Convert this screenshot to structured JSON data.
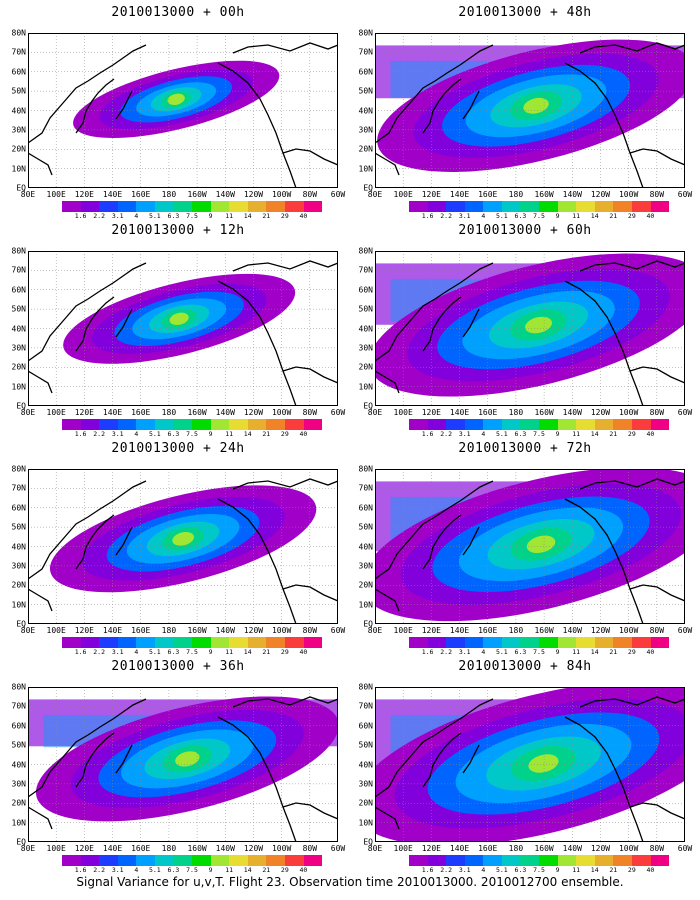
{
  "panels": [
    {
      "title": "2010013000 + 00h",
      "level": 0.1
    },
    {
      "title": "2010013000 + 12h",
      "level": 0.22
    },
    {
      "title": "2010013000 + 24h",
      "level": 0.38
    },
    {
      "title": "2010013000 + 36h",
      "level": 0.55
    },
    {
      "title": "2010013000 + 48h",
      "level": 0.62
    },
    {
      "title": "2010013000 + 60h",
      "level": 0.72
    },
    {
      "title": "2010013000 + 72h",
      "level": 0.82
    },
    {
      "title": "2010013000 + 84h",
      "level": 0.92
    }
  ],
  "lon_labels": [
    "80E",
    "100E",
    "120E",
    "140E",
    "160E",
    "180",
    "160W",
    "140W",
    "120W",
    "100W",
    "80W",
    "60W"
  ],
  "lat_labels": [
    "80N",
    "70N",
    "60N",
    "50N",
    "40N",
    "30N",
    "20N",
    "10N",
    "EQ"
  ],
  "colorbar": {
    "labels": [
      "1.6",
      "2.2",
      "3.1",
      "4",
      "5.1",
      "6.3",
      "7.5",
      "9",
      "11",
      "14",
      "21",
      "29",
      "40"
    ],
    "colors": [
      "#a000c8",
      "#8200dc",
      "#1e3cff",
      "#0064ff",
      "#00a0ff",
      "#00c8c8",
      "#00d28c",
      "#00dc00",
      "#a0e632",
      "#e6dc32",
      "#e6af2d",
      "#f08228",
      "#fa3c3c",
      "#f00082"
    ]
  },
  "footer": "Signal Variance for u,v,T. Flight 23. Observation time 2010013000. 2010012700 ensemble."
}
